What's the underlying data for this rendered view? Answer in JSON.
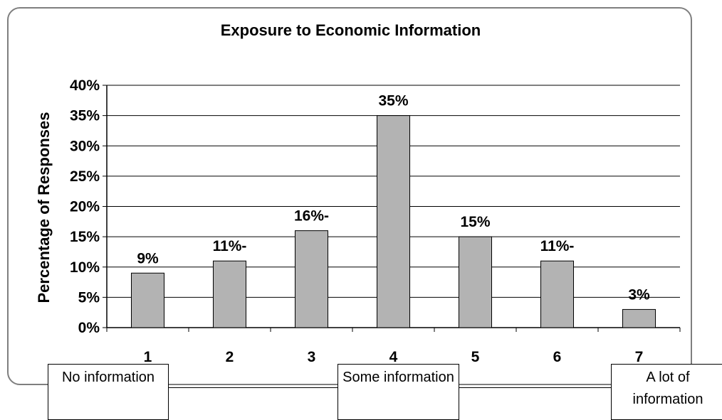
{
  "chart_data": {
    "type": "bar",
    "title": "Exposure to Economic Information",
    "ylabel": "Percentage of Responses",
    "xlabel": "",
    "categories": [
      "1",
      "2",
      "3",
      "4",
      "5",
      "6",
      "7"
    ],
    "values": [
      9,
      11,
      16,
      35,
      15,
      11,
      3
    ],
    "value_labels": [
      "9%",
      "11%-",
      "16%-",
      "35%",
      "15%",
      "11%-",
      "3%"
    ],
    "ylim": [
      0,
      40
    ],
    "yticks": [
      0,
      5,
      10,
      15,
      20,
      25,
      30,
      35,
      40
    ],
    "ytick_labels": [
      "0%",
      "5%",
      "10%",
      "15%",
      "20%",
      "25%",
      "30%",
      "35%",
      "40%"
    ],
    "grid": true,
    "bar_color": "#b3b3b3"
  },
  "scale_anchors": {
    "low": "No information",
    "mid": "Some information",
    "high": "A lot of information"
  }
}
